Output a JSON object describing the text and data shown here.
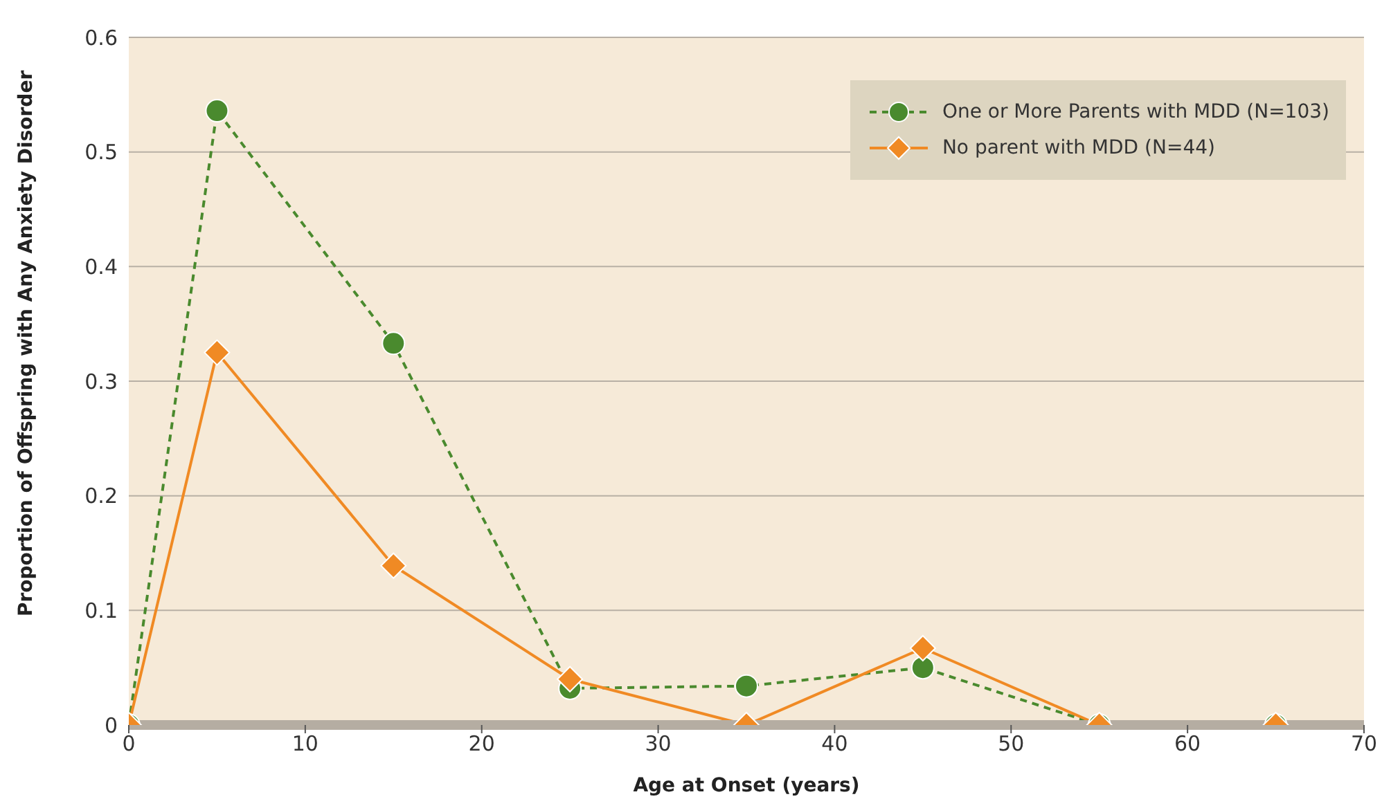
{
  "chart_data": {
    "type": "line",
    "xlabel": "Age at Onset (years)",
    "ylabel": "Proportion of Offspring with Any Anxiety Disorder",
    "x": [
      0,
      5,
      15,
      25,
      35,
      45,
      55,
      65
    ],
    "series": [
      {
        "name": "One or More Parents with MDD (N=103)",
        "color": "#4a8a2e",
        "values": [
          0,
          0.536,
          0.333,
          0.032,
          0.034,
          0.05,
          0,
          0
        ],
        "marker": "circle",
        "line_style": "dashed"
      },
      {
        "name": "No parent with MDD (N=44)",
        "color": "#f08a24",
        "values": [
          0,
          0.325,
          0.139,
          0.04,
          0,
          0.067,
          0,
          0
        ],
        "marker": "diamond",
        "line_style": "solid"
      }
    ],
    "xlim": [
      0,
      70
    ],
    "xticks": [
      0,
      10,
      20,
      30,
      40,
      50,
      60,
      70
    ],
    "ylim": [
      0,
      0.6
    ],
    "yticks": [
      0,
      0.1,
      0.2,
      0.3,
      0.4,
      0.5,
      0.6
    ],
    "grid": "y",
    "legend": "top right"
  }
}
